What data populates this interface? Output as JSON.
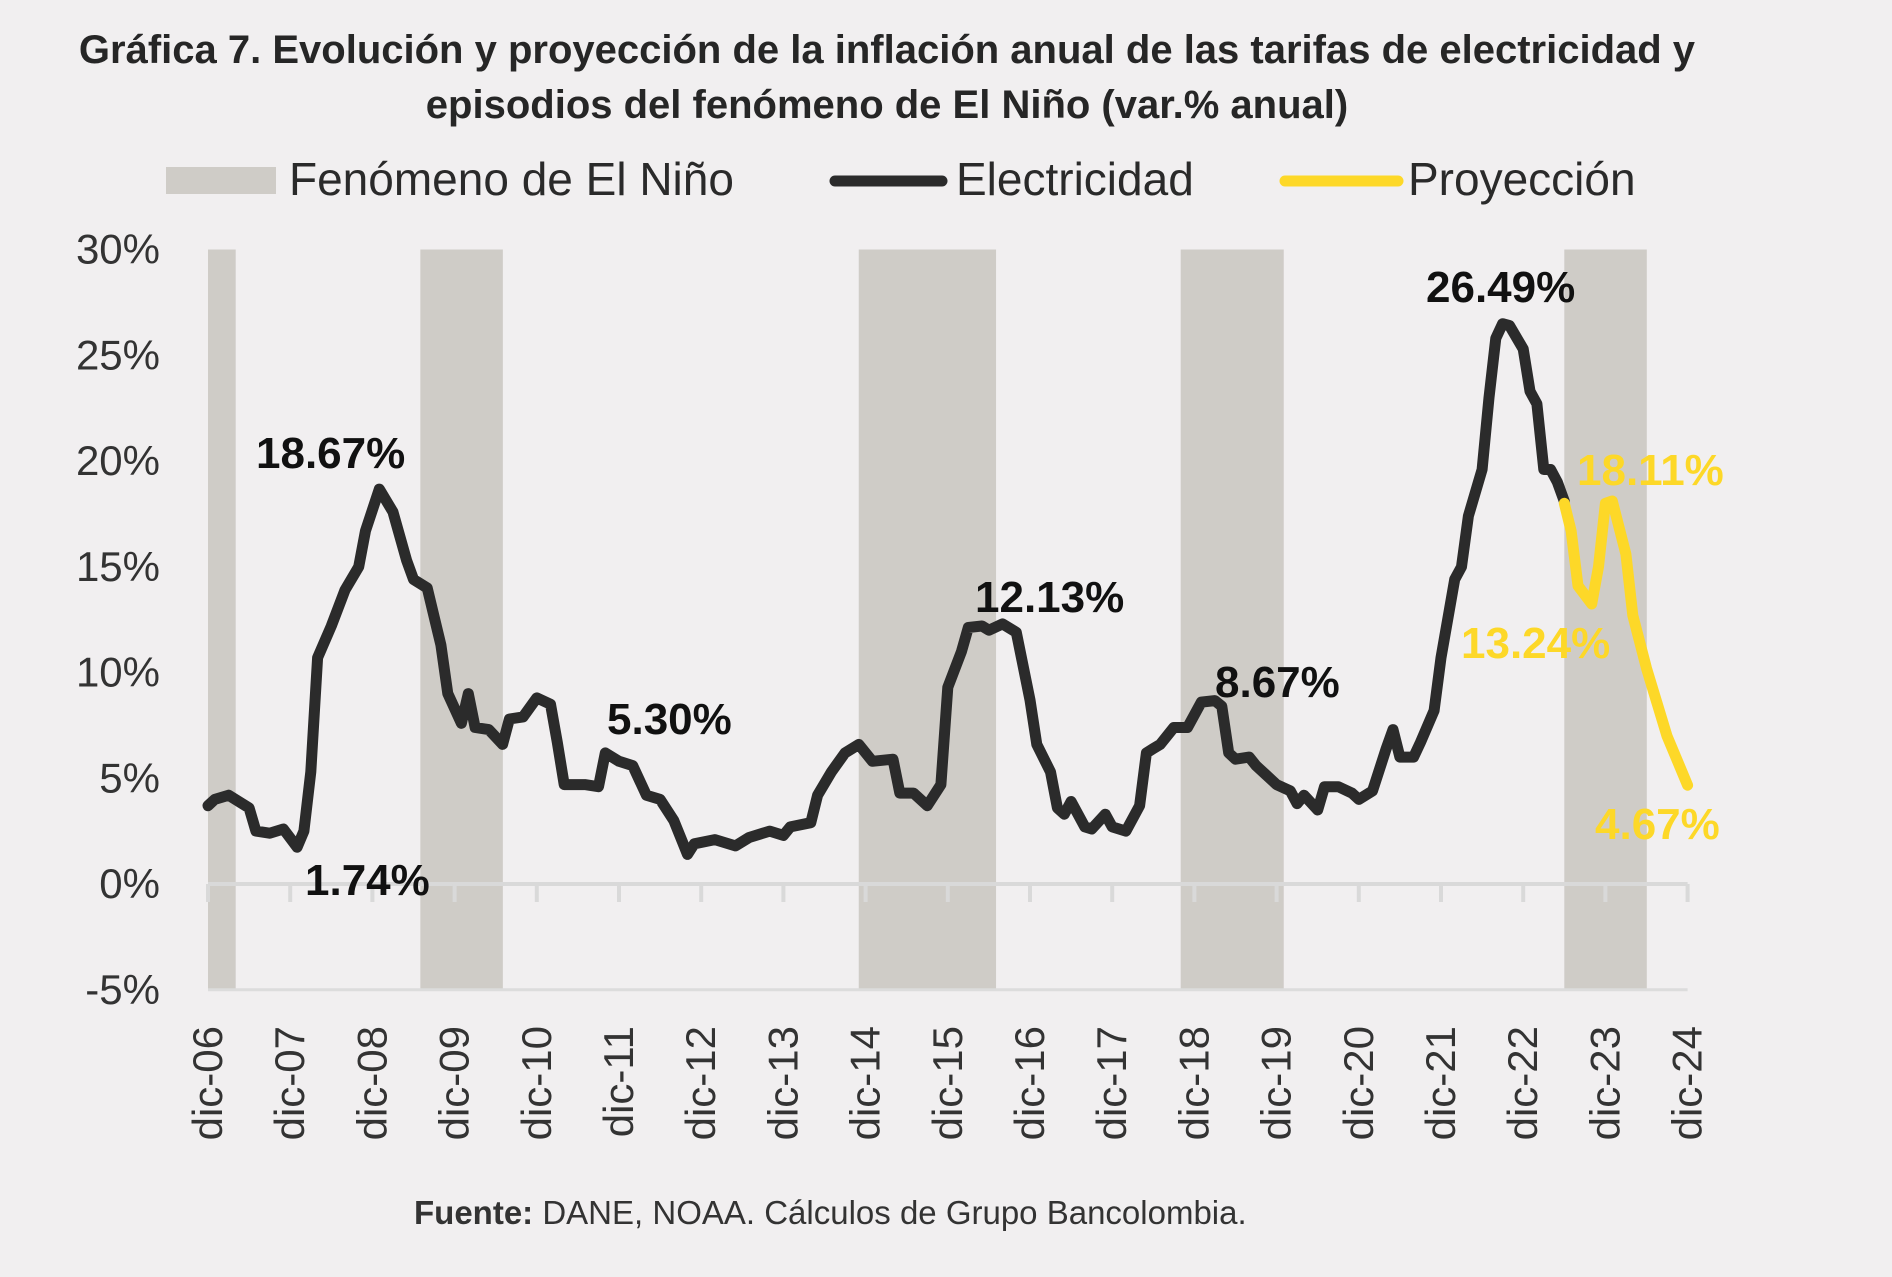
{
  "chart_data": {
    "type": "line",
    "title": "Gráfica 7. Evolución y proyección de la inflación anual de las tarifas de electricidad y episodios del fenómeno de El Niño (var.% anual)",
    "title_lines": [
      "Gráfica 7. Evolución y proyección de la inflación anual de las tarifas de electricidad y",
      "episodios del fenómeno de El Niño (var.% anual)"
    ],
    "xlabel": "",
    "ylabel": "",
    "ylim": [
      -5,
      30
    ],
    "xlim": [
      "2006-12",
      "2024-12"
    ],
    "grid": false,
    "legend_position": "top",
    "y_ticks": [
      "30%",
      "25%",
      "20%",
      "15%",
      "10%",
      "5%",
      "0%",
      "-5%"
    ],
    "y_tick_values": [
      30,
      25,
      20,
      15,
      10,
      5,
      0,
      -5
    ],
    "x_ticks": [
      "dic-06",
      "dic-07",
      "dic-08",
      "dic-09",
      "dic-10",
      "dic-11",
      "dic-12",
      "dic-13",
      "dic-14",
      "dic-15",
      "dic-16",
      "dic-17",
      "dic-18",
      "dic-19",
      "dic-20",
      "dic-21",
      "dic-22",
      "dic-23",
      "dic-24"
    ],
    "legend": {
      "nino": "Fenómeno de El Niño",
      "electricity": "Electricidad",
      "projection": "Proyección"
    },
    "colors": {
      "nino": "#cfccc7",
      "electricity": "#2b2b2b",
      "projection": "#fdd828",
      "background": "#f1eff0"
    },
    "el_nino_periods": [
      [
        "2006-12",
        "2007-02"
      ],
      [
        "2009-07",
        "2010-05"
      ],
      [
        "2014-11",
        "2016-05"
      ],
      [
        "2018-10",
        "2019-11"
      ],
      [
        "2023-06",
        "2024-04"
      ]
    ],
    "series": [
      {
        "name": "Electricidad",
        "points": [
          [
            "2006-12",
            3.7
          ],
          [
            "2007-01",
            4.0
          ],
          [
            "2007-03",
            4.2
          ],
          [
            "2007-06",
            3.6
          ],
          [
            "2007-07",
            2.5
          ],
          [
            "2007-09",
            2.4
          ],
          [
            "2007-11",
            2.6
          ],
          [
            "2008-01",
            1.74
          ],
          [
            "2008-02",
            2.5
          ],
          [
            "2008-03",
            5.3
          ],
          [
            "2008-04",
            10.7
          ],
          [
            "2008-06",
            12.2
          ],
          [
            "2008-08",
            13.9
          ],
          [
            "2008-10",
            15.0
          ],
          [
            "2008-11",
            16.7
          ],
          [
            "2009-01",
            18.67
          ],
          [
            "2009-03",
            17.6
          ],
          [
            "2009-05",
            15.3
          ],
          [
            "2009-06",
            14.4
          ],
          [
            "2009-08",
            14.0
          ],
          [
            "2009-10",
            11.3
          ],
          [
            "2009-11",
            9.0
          ],
          [
            "2010-01",
            7.6
          ],
          [
            "2010-02",
            9.0
          ],
          [
            "2010-03",
            7.4
          ],
          [
            "2010-05",
            7.3
          ],
          [
            "2010-07",
            6.6
          ],
          [
            "2010-08",
            7.8
          ],
          [
            "2010-10",
            7.9
          ],
          [
            "2010-12",
            8.8
          ],
          [
            "2011-02",
            8.5
          ],
          [
            "2011-03",
            6.7
          ],
          [
            "2011-04",
            4.7
          ],
          [
            "2011-07",
            4.7
          ],
          [
            "2011-09",
            4.6
          ],
          [
            "2011-10",
            6.2
          ],
          [
            "2011-12",
            5.8
          ],
          [
            "2012-02",
            5.6
          ],
          [
            "2012-04",
            4.2
          ],
          [
            "2012-06",
            4.0
          ],
          [
            "2012-08",
            3.0
          ],
          [
            "2012-10",
            1.4
          ],
          [
            "2012-11",
            1.9
          ],
          [
            "2013-02",
            2.1
          ],
          [
            "2013-05",
            1.8
          ],
          [
            "2013-07",
            2.2
          ],
          [
            "2013-10",
            2.5
          ],
          [
            "2013-12",
            2.3
          ],
          [
            "2014-01",
            2.7
          ],
          [
            "2014-04",
            2.9
          ],
          [
            "2014-05",
            4.2
          ],
          [
            "2014-07",
            5.3
          ],
          [
            "2014-09",
            6.2
          ],
          [
            "2014-11",
            6.6
          ],
          [
            "2015-01",
            5.8
          ],
          [
            "2015-04",
            5.9
          ],
          [
            "2015-05",
            4.3
          ],
          [
            "2015-07",
            4.3
          ],
          [
            "2015-09",
            3.7
          ],
          [
            "2015-11",
            4.7
          ],
          [
            "2015-12",
            9.3
          ],
          [
            "2016-02",
            11.0
          ],
          [
            "2016-03",
            12.13
          ],
          [
            "2016-05",
            12.2
          ],
          [
            "2016-06",
            12.0
          ],
          [
            "2016-08",
            12.3
          ],
          [
            "2016-10",
            11.9
          ],
          [
            "2016-12",
            8.7
          ],
          [
            "2017-01",
            6.6
          ],
          [
            "2017-03",
            5.3
          ],
          [
            "2017-04",
            3.6
          ],
          [
            "2017-05",
            3.3
          ],
          [
            "2017-06",
            3.9
          ],
          [
            "2017-08",
            2.7
          ],
          [
            "2017-09",
            2.6
          ],
          [
            "2017-11",
            3.3
          ],
          [
            "2017-12",
            2.7
          ],
          [
            "2018-02",
            2.5
          ],
          [
            "2018-04",
            3.7
          ],
          [
            "2018-05",
            6.2
          ],
          [
            "2018-06",
            6.4
          ],
          [
            "2018-07",
            6.6
          ],
          [
            "2018-09",
            7.4
          ],
          [
            "2018-11",
            7.4
          ],
          [
            "2019-01",
            8.6
          ],
          [
            "2019-03",
            8.67
          ],
          [
            "2019-04",
            8.4
          ],
          [
            "2019-05",
            6.2
          ],
          [
            "2019-06",
            5.9
          ],
          [
            "2019-08",
            6.0
          ],
          [
            "2019-09",
            5.6
          ],
          [
            "2019-10",
            5.3
          ],
          [
            "2019-12",
            4.7
          ],
          [
            "2020-02",
            4.4
          ],
          [
            "2020-03",
            3.8
          ],
          [
            "2020-04",
            4.2
          ],
          [
            "2020-06",
            3.5
          ],
          [
            "2020-07",
            4.6
          ],
          [
            "2020-09",
            4.6
          ],
          [
            "2020-11",
            4.3
          ],
          [
            "2020-12",
            4.0
          ],
          [
            "2021-02",
            4.4
          ],
          [
            "2021-04",
            6.4
          ],
          [
            "2021-05",
            7.3
          ],
          [
            "2021-06",
            6.0
          ],
          [
            "2021-08",
            6.0
          ],
          [
            "2021-09",
            6.7
          ],
          [
            "2021-11",
            8.2
          ],
          [
            "2021-12",
            10.7
          ],
          [
            "2022-02",
            14.4
          ],
          [
            "2022-03",
            15.0
          ],
          [
            "2022-04",
            17.4
          ],
          [
            "2022-06",
            19.6
          ],
          [
            "2022-07",
            23.0
          ],
          [
            "2022-08",
            25.8
          ],
          [
            "2022-09",
            26.49
          ],
          [
            "2022-10",
            26.4
          ],
          [
            "2022-12",
            25.3
          ],
          [
            "2023-01",
            23.3
          ],
          [
            "2023-02",
            22.7
          ],
          [
            "2023-03",
            19.6
          ],
          [
            "2023-04",
            19.6
          ],
          [
            "2023-05",
            19.0
          ],
          [
            "2023-06",
            18.1
          ]
        ]
      },
      {
        "name": "Proyección",
        "points": [
          [
            "2023-06",
            18.0
          ],
          [
            "2023-07",
            16.7
          ],
          [
            "2023-08",
            14.1
          ],
          [
            "2023-10",
            13.24
          ],
          [
            "2023-11",
            15.0
          ],
          [
            "2023-12",
            18.0
          ],
          [
            "2024-01",
            18.11
          ],
          [
            "2024-03",
            15.6
          ],
          [
            "2024-04",
            12.7
          ],
          [
            "2024-06",
            10.2
          ],
          [
            "2024-09",
            7.0
          ],
          [
            "2024-12",
            4.67
          ]
        ]
      }
    ],
    "annotations": {
      "peak_2009": "18.67%",
      "low_2008": "1.74%",
      "val_2011": "5.30%",
      "peak_2016": "12.13%",
      "peak_2019": "8.67%",
      "peak_2022": "26.49%",
      "proj_high": "18.11%",
      "proj_low": "13.24%",
      "proj_end": "4.67%"
    }
  },
  "source": {
    "label": "Fuente:",
    "text": " DANE, NOAA. Cálculos de Grupo Bancolombia."
  }
}
